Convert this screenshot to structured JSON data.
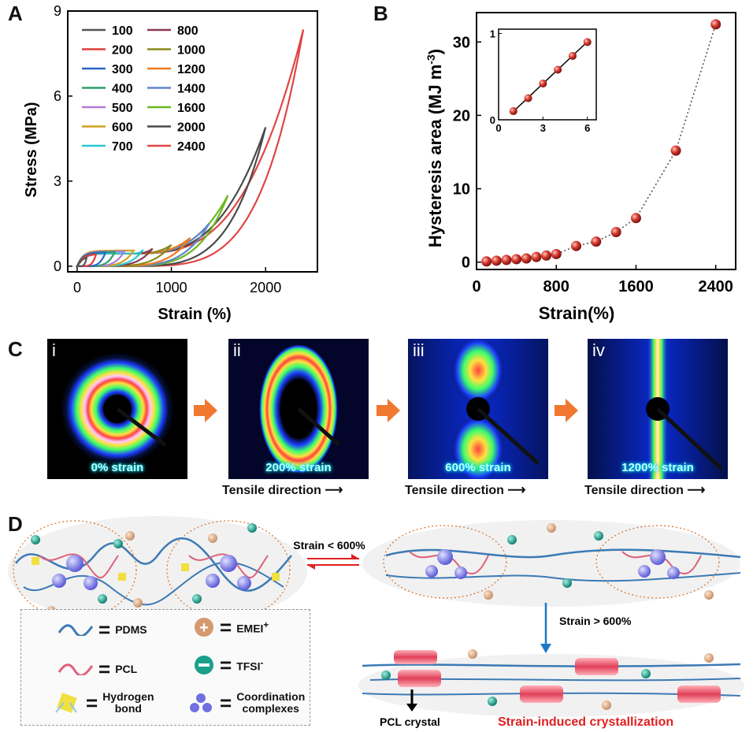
{
  "panels": {
    "a": "A",
    "b": "B",
    "c": "C",
    "d": "D"
  },
  "chart_data": [
    {
      "type": "line",
      "title": "",
      "xlabel": "Strain (%)",
      "ylabel": "Stress (MPa)",
      "xlim": [
        -100,
        2550
      ],
      "ylim": [
        -0.2,
        9
      ],
      "xticks": [
        "0",
        "1000",
        "2000"
      ],
      "yticks": [
        "0",
        "3",
        "6",
        "9"
      ],
      "xtick_values": [
        0,
        1000,
        2000
      ],
      "ytick_values": [
        0,
        3,
        6,
        9
      ],
      "legend": [
        {
          "label": "100",
          "color": "#555555"
        },
        {
          "label": "200",
          "color": "#e03c3c"
        },
        {
          "label": "300",
          "color": "#2a66c8"
        },
        {
          "label": "400",
          "color": "#2e9e6a"
        },
        {
          "label": "500",
          "color": "#b07ad8"
        },
        {
          "label": "600",
          "color": "#d0a020"
        },
        {
          "label": "700",
          "color": "#28c8d0"
        },
        {
          "label": "800",
          "color": "#8a3a52"
        },
        {
          "label": "1000",
          "color": "#8a8a1a"
        },
        {
          "label": "1200",
          "color": "#f07a20"
        },
        {
          "label": "1400",
          "color": "#5f86c8"
        },
        {
          "label": "1600",
          "color": "#6ab81e"
        },
        {
          "label": "2000",
          "color": "#4a4a4a"
        },
        {
          "label": "2400",
          "color": "#e04646"
        }
      ],
      "series": [
        {
          "name": "100",
          "max_strain": 100,
          "max_stress": 0.3
        },
        {
          "name": "200",
          "max_strain": 200,
          "max_stress": 0.42
        },
        {
          "name": "300",
          "max_strain": 300,
          "max_stress": 0.48
        },
        {
          "name": "400",
          "max_strain": 400,
          "max_stress": 0.5
        },
        {
          "name": "500",
          "max_strain": 500,
          "max_stress": 0.52
        },
        {
          "name": "600",
          "max_strain": 600,
          "max_stress": 0.55
        },
        {
          "name": "700",
          "max_strain": 700,
          "max_stress": 0.58
        },
        {
          "name": "800",
          "max_strain": 800,
          "max_stress": 0.62
        },
        {
          "name": "1000",
          "max_strain": 1000,
          "max_stress": 0.75
        },
        {
          "name": "1200",
          "max_strain": 1200,
          "max_stress": 1.0
        },
        {
          "name": "1400",
          "max_strain": 1400,
          "max_stress": 1.5
        },
        {
          "name": "1600",
          "max_strain": 1600,
          "max_stress": 2.5
        },
        {
          "name": "2000",
          "max_strain": 2000,
          "max_stress": 4.9
        },
        {
          "name": "2400",
          "max_strain": 2400,
          "max_stress": 8.35
        }
      ]
    },
    {
      "type": "scatter",
      "title": "",
      "xlabel": "Strain(%)",
      "ylabel": "Hysteresis area (MJ m⁻³)",
      "ylabel_main": "Hysteresis area (MJ m",
      "ylabel_sup": "-3",
      "ylabel_close": ")",
      "xlim": [
        0,
        2600
      ],
      "ylim": [
        -1,
        34
      ],
      "xticks": [
        "0",
        "800",
        "1600",
        "2400"
      ],
      "yticks": [
        "0",
        "10",
        "20",
        "30"
      ],
      "xtick_values": [
        0,
        800,
        1600,
        2400
      ],
      "ytick_values": [
        0,
        10,
        20,
        30
      ],
      "x": [
        100,
        200,
        300,
        400,
        500,
        600,
        700,
        800,
        1000,
        1200,
        1400,
        1600,
        2000,
        2400
      ],
      "y": [
        0.1,
        0.2,
        0.3,
        0.4,
        0.5,
        0.7,
        0.9,
        1.1,
        2.2,
        2.8,
        4.1,
        6.0,
        15.2,
        32.4
      ],
      "inset": {
        "type": "scatter",
        "xlim": [
          0,
          6.6
        ],
        "ylim": [
          0,
          1.05
        ],
        "xticks": [
          "0",
          "3",
          "6"
        ],
        "yticks": [
          "0",
          "1"
        ],
        "xtick_values": [
          0,
          3,
          6
        ],
        "ytick_values": [
          0,
          1
        ],
        "x": [
          1,
          2,
          3,
          4,
          5,
          6
        ],
        "y": [
          0.1,
          0.25,
          0.42,
          0.58,
          0.74,
          0.9
        ],
        "fit": [
          [
            0.9,
            0.08
          ],
          [
            6.1,
            0.92
          ]
        ]
      }
    }
  ],
  "saxs": [
    {
      "roman": "i",
      "strain": "0% strain",
      "tensile": ""
    },
    {
      "roman": "ii",
      "strain": "200% strain",
      "tensile": "Tensile direction"
    },
    {
      "roman": "iii",
      "strain": "600%  strain",
      "tensile": "Tensile direction"
    },
    {
      "roman": "iv",
      "strain": "1200%  strain",
      "tensile": "Tensile direction"
    }
  ],
  "scheme": {
    "strain_low": "Strain < 600%",
    "strain_high": "Strain > 600%",
    "pcl_crystal": "PCL crystal",
    "sic": "Strain-induced crystallization",
    "colors": {
      "pdms": "#3c7ab4",
      "pcl": "#e0607a",
      "accent_red": "#e02020",
      "arrow_blue": "#1e78c8",
      "orange": "#f07830"
    }
  },
  "legend": {
    "pdms": "PDMS",
    "pcl": "PCL",
    "hbond_1": "Hydrogen",
    "hbond_2": "bond",
    "emei": "EMEI",
    "emei_sup": "+",
    "tfsi": "TFSI",
    "tfsi_sup": "-",
    "coord_1": "Coordination",
    "coord_2": "complexes"
  }
}
